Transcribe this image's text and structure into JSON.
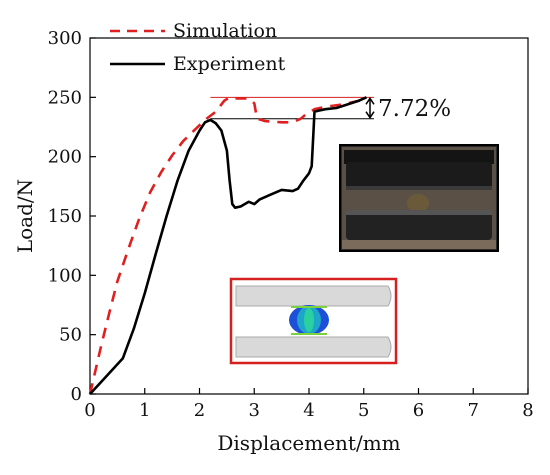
{
  "chart_data": {
    "type": "line",
    "xlabel": "Displacement/mm",
    "ylabel": "Load/N",
    "xlim": [
      0,
      8
    ],
    "ylim": [
      0,
      300
    ],
    "xticks": [
      0,
      1,
      2,
      3,
      4,
      5,
      6,
      7,
      8
    ],
    "yticks": [
      0,
      50,
      100,
      150,
      200,
      250,
      300
    ],
    "grid": false,
    "legend_position": "top-left",
    "series": [
      {
        "name": "Simulation",
        "style": "dashed",
        "color": "#e02020",
        "x": [
          0,
          0.1,
          0.2,
          0.35,
          0.5,
          0.7,
          0.9,
          1.1,
          1.3,
          1.5,
          1.7,
          1.9,
          2.1,
          2.3,
          2.45,
          2.55,
          2.7,
          2.9,
          3.0,
          3.05,
          3.2,
          3.5,
          3.7,
          3.85,
          3.95,
          4.1,
          4.3,
          4.6,
          4.9,
          5.05
        ],
        "y": [
          0,
          20,
          40,
          68,
          95,
          122,
          148,
          170,
          187,
          201,
          213,
          222,
          231,
          238,
          247,
          250,
          249,
          249,
          245,
          232,
          230,
          229,
          229,
          232,
          236,
          240,
          242,
          244,
          247,
          249
        ]
      },
      {
        "name": "Experiment",
        "style": "solid",
        "color": "#000000",
        "x": [
          0,
          0.2,
          0.4,
          0.6,
          0.8,
          1.0,
          1.2,
          1.4,
          1.6,
          1.8,
          2.0,
          2.1,
          2.2,
          2.3,
          2.4,
          2.5,
          2.55,
          2.6,
          2.65,
          2.75,
          2.9,
          3.0,
          3.1,
          3.3,
          3.5,
          3.7,
          3.8,
          3.9,
          4.0,
          4.05,
          4.1,
          4.2,
          4.3,
          4.5,
          4.7,
          4.9,
          5.05
        ],
        "y": [
          0,
          10,
          20,
          30,
          55,
          85,
          118,
          150,
          180,
          205,
          222,
          229,
          231,
          228,
          222,
          205,
          180,
          160,
          157,
          158,
          162,
          160,
          164,
          168,
          172,
          171,
          173,
          180,
          186,
          192,
          238,
          239,
          240,
          241,
          244,
          247,
          250
        ]
      }
    ],
    "annotation": {
      "text": "7.72%",
      "y_upper": 250,
      "y_lower": 232
    }
  },
  "insets": {
    "photo_label": "",
    "simulation_label": ""
  }
}
